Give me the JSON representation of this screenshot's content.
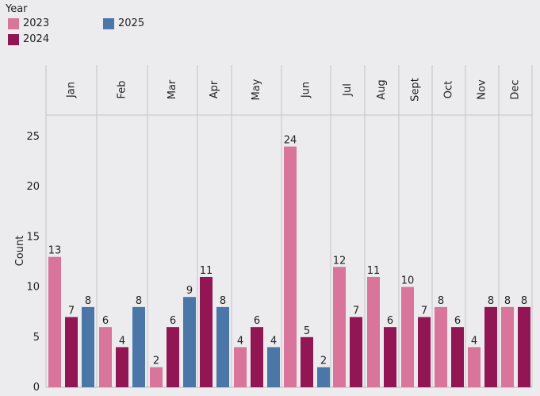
{
  "legend": {
    "title": "Year",
    "items": [
      {
        "label": "2023",
        "color": "#d9749a"
      },
      {
        "label": "2024",
        "color": "#921554"
      },
      {
        "label": "2025",
        "color": "#4a77a8"
      }
    ]
  },
  "chart_data": {
    "type": "bar",
    "categories": [
      "Jan",
      "Feb",
      "Mar",
      "Apr",
      "May",
      "Jun",
      "Jul",
      "Aug",
      "Sept",
      "Oct",
      "Nov",
      "Dec"
    ],
    "series": [
      {
        "name": "2023",
        "color": "#d9749a",
        "values": [
          13,
          6,
          2,
          null,
          4,
          24,
          12,
          11,
          10,
          8,
          4,
          8
        ]
      },
      {
        "name": "2024",
        "color": "#921554",
        "values": [
          7,
          4,
          6,
          11,
          6,
          5,
          7,
          6,
          7,
          6,
          8,
          8
        ]
      },
      {
        "name": "2025",
        "color": "#4a77a8",
        "values": [
          8,
          8,
          9,
          8,
          4,
          2,
          null,
          null,
          null,
          null,
          null,
          null
        ]
      }
    ],
    "ylabel": "Count",
    "yticks": [
      0,
      5,
      10,
      15,
      20,
      25
    ],
    "ylim": [
      0,
      27
    ],
    "legend_position": "top-left",
    "grid": false
  }
}
